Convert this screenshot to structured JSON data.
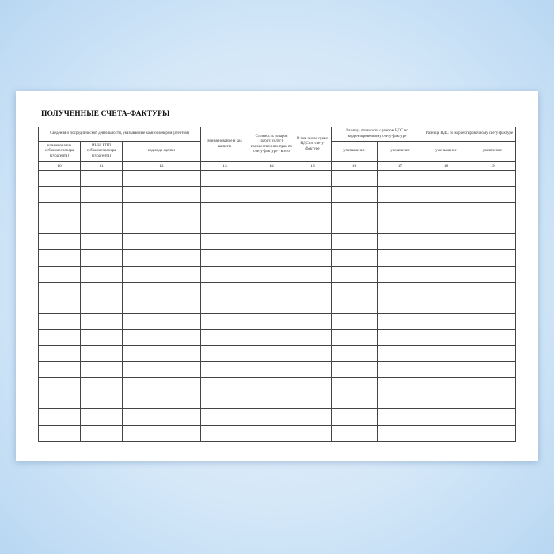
{
  "title": "ПОЛУЧЕННЫЕ СЧЕТА-ФАКТУРЫ",
  "headers": {
    "group_agent": "Сведения о посреднической деятельности, указываемые комиссионером (агентом)",
    "sub_name": "наименование субкомиссионера (субагента)",
    "sub_inn": "ИНН/ КПП субкомиссионера (субагента)",
    "deal_code": "код вида сделки",
    "currency": "Наименование и код валюты",
    "cost": "Стоимость товаров (работ, услуг), имущественных прав по счету-фактуре - всего",
    "vat": "В том числе сумма НДС по счету-фактуре",
    "diff_cost": "Разница стоимости с учетом НДС  по корректировочному  счету-фактуре",
    "diff_vat": "Разница НДС по корректировочному счету-фактуре",
    "decrease": "уменьшение",
    "increase": "увеличение"
  },
  "column_numbers": [
    "10",
    "11",
    "12",
    "13",
    "14",
    "15",
    "16",
    "17",
    "18",
    "19"
  ],
  "empty_rows": 17
}
